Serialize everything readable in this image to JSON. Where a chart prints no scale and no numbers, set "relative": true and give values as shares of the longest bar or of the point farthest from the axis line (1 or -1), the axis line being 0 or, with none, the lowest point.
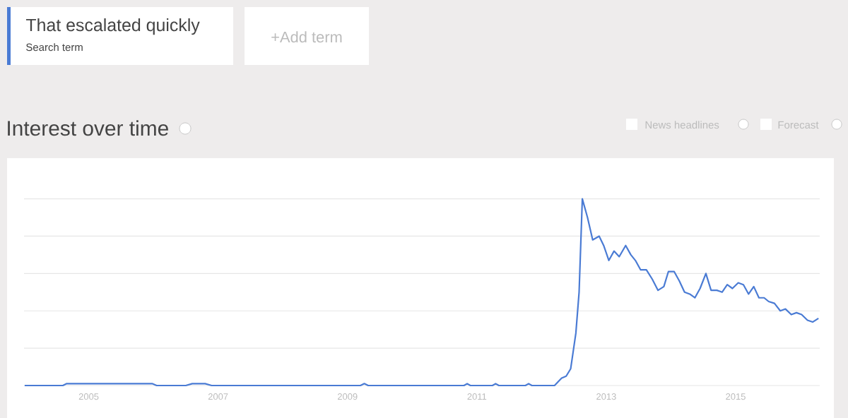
{
  "chart_data": {
    "type": "line",
    "title": "Interest over time",
    "relative": true,
    "x": [
      2004.01,
      2004.6,
      2004.66,
      2005.98,
      2006.05,
      2006.5,
      2006.6,
      2006.8,
      2006.9,
      2009.2,
      2009.26,
      2009.32,
      2010.8,
      2010.85,
      2010.9,
      2011.24,
      2011.29,
      2011.34,
      2011.75,
      2011.8,
      2011.85,
      2012.2,
      2012.31,
      2012.38,
      2012.45,
      2012.53,
      2012.58,
      2012.63,
      2012.71,
      2012.79,
      2012.89,
      2012.96,
      2013.04,
      2013.12,
      2013.2,
      2013.3,
      2013.38,
      2013.45,
      2013.53,
      2013.62,
      2013.71,
      2013.8,
      2013.89,
      2013.96,
      2014.05,
      2014.13,
      2014.21,
      2014.29,
      2014.37,
      2014.45,
      2014.54,
      2014.62,
      2014.71,
      2014.79,
      2014.87,
      2014.95,
      2015.04,
      2015.12,
      2015.2,
      2015.28,
      2015.36,
      2015.44,
      2015.51,
      2015.6,
      2015.69,
      2015.77,
      2015.86,
      2015.94,
      2016.02,
      2016.11,
      2016.19,
      2016.28
    ],
    "series": [
      {
        "name": "That escalated quickly",
        "color": "#4a7bd4",
        "values": [
          0,
          0,
          0.01,
          0.01,
          0,
          0,
          0.01,
          0.01,
          0,
          0,
          0.01,
          0,
          0,
          0.01,
          0,
          0,
          0.01,
          0,
          0,
          0.01,
          0,
          0,
          0.04,
          0.05,
          0.09,
          0.28,
          0.5,
          1.0,
          0.9,
          0.78,
          0.8,
          0.75,
          0.67,
          0.72,
          0.69,
          0.75,
          0.7,
          0.67,
          0.62,
          0.62,
          0.57,
          0.51,
          0.53,
          0.61,
          0.61,
          0.56,
          0.5,
          0.49,
          0.47,
          0.52,
          0.6,
          0.51,
          0.51,
          0.5,
          0.54,
          0.52,
          0.55,
          0.54,
          0.49,
          0.53,
          0.47,
          0.47,
          0.45,
          0.44,
          0.4,
          0.41,
          0.38,
          0.39,
          0.38,
          0.35,
          0.34,
          0.36
        ]
      }
    ],
    "xlim": [
      2004,
      2016.3
    ],
    "xticks": [
      2005,
      2007,
      2009,
      2011,
      2013,
      2015
    ],
    "grid": "y",
    "legend": "top left",
    "annotations": [
      "Search term",
      "+Add term",
      "News headlines",
      "Forecast"
    ]
  }
}
